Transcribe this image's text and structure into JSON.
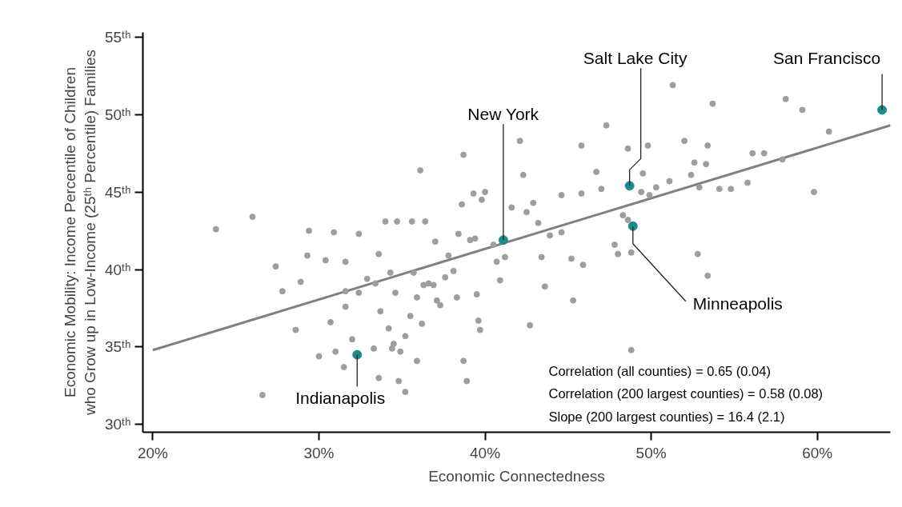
{
  "chart_data": {
    "type": "scatter",
    "xlabel": "Economic Connectedness",
    "ylabel": "Economic Mobility: Income Percentile of Children\nwho Grow up in Low-Income (25ᵗʰ Percentile) Families",
    "xlim": [
      19.4,
      64.4
    ],
    "ylim": [
      29.5,
      55.3
    ],
    "xticks": [
      {
        "value": 20,
        "label": "20%"
      },
      {
        "value": 30,
        "label": "30%"
      },
      {
        "value": 40,
        "label": "40%"
      },
      {
        "value": 50,
        "label": "50%"
      },
      {
        "value": 60,
        "label": "60%"
      }
    ],
    "yticks": [
      {
        "value": 30,
        "label": "30ᵗʰ"
      },
      {
        "value": 35,
        "label": "35ᵗʰ"
      },
      {
        "value": 40,
        "label": "40ᵗʰ"
      },
      {
        "value": 45,
        "label": "45ᵗʰ"
      },
      {
        "value": 50,
        "label": "50ᵗʰ"
      },
      {
        "value": 55,
        "label": "55ᵗʰ"
      }
    ],
    "grid": false,
    "series": [
      {
        "marker": "circle",
        "color": "#9e9e9e",
        "x": [
          23.8,
          26.0,
          26.6,
          27.4,
          27.8,
          28.6,
          28.9,
          29.3,
          29.4,
          30.0,
          30.4,
          30.7,
          30.9,
          31.0,
          31.5,
          31.6,
          31.6,
          31.6,
          32.0,
          32.4,
          32.4,
          32.9,
          33.3,
          33.6,
          33.6,
          34.0,
          34.7,
          33.7,
          33.4,
          34.2,
          34.4,
          34.5,
          34.8,
          35.2,
          35.2,
          35.5,
          35.6,
          35.9,
          36.1,
          36.4,
          35.7,
          35.9,
          36.3,
          36.6,
          37.0,
          37.1,
          37.3,
          37.6,
          37.8,
          38.1,
          38.3,
          38.4,
          38.6,
          38.7,
          38.7,
          38.9,
          39.1,
          39.3,
          39.4,
          39.5,
          39.6,
          39.7,
          39.8,
          40.0,
          40.5,
          40.7,
          40.9,
          41.2,
          41.6,
          42.1,
          42.3,
          42.5,
          42.7,
          42.9,
          43.2,
          43.4,
          43.9,
          43.6,
          44.6,
          44.6,
          45.2,
          45.3,
          45.8,
          45.8,
          45.9,
          46.7,
          47.0,
          47.3,
          47.8,
          48.0,
          48.3,
          48.6,
          48.6,
          48.8,
          48.8,
          49.4,
          49.5,
          49.8,
          49.9,
          50.3,
          51.1,
          51.3,
          52.0,
          52.4,
          52.6,
          52.9,
          53.3,
          53.4,
          52.8,
          53.4,
          53.7,
          54.1,
          54.8,
          55.8,
          56.1,
          56.8,
          57.9,
          58.1,
          59.1,
          59.8,
          60.7,
          34.3,
          34.6,
          34.9,
          36.2,
          36.9
        ],
        "values": [
          42.6,
          43.4,
          31.9,
          40.2,
          38.6,
          36.1,
          39.2,
          40.9,
          42.5,
          34.4,
          40.6,
          36.6,
          42.4,
          34.7,
          33.7,
          37.6,
          40.5,
          38.6,
          35.5,
          42.3,
          38.5,
          39.4,
          34.9,
          33.0,
          41.0,
          43.1,
          43.1,
          37.3,
          39.1,
          36.2,
          34.9,
          35.2,
          32.8,
          32.1,
          35.7,
          37.0,
          43.1,
          34.1,
          46.4,
          43.1,
          39.8,
          38.2,
          39.0,
          39.1,
          41.8,
          38.0,
          37.7,
          39.5,
          40.9,
          39.9,
          38.2,
          42.3,
          44.2,
          47.4,
          34.1,
          32.8,
          41.9,
          44.9,
          42.0,
          38.4,
          36.7,
          36.1,
          44.5,
          45.0,
          41.6,
          40.5,
          39.3,
          40.8,
          44.0,
          48.3,
          46.1,
          43.7,
          36.4,
          44.3,
          43.0,
          40.8,
          42.2,
          38.9,
          44.8,
          42.4,
          40.7,
          38.0,
          48.0,
          44.9,
          40.3,
          46.3,
          45.2,
          49.3,
          41.6,
          41.0,
          43.5,
          43.2,
          47.8,
          41.1,
          34.8,
          45.0,
          46.2,
          48.0,
          44.8,
          45.3,
          45.7,
          51.9,
          48.3,
          46.1,
          46.9,
          45.3,
          46.8,
          48.0,
          41.0,
          39.6,
          50.7,
          45.2,
          45.2,
          45.6,
          47.5,
          47.5,
          47.1,
          51.0,
          50.3,
          45.0,
          48.9,
          39.8,
          38.5,
          34.7,
          36.5,
          39.0
        ]
      },
      {
        "marker": "circle",
        "color": "#1b8c8a",
        "x": [
          32.3,
          41.1,
          48.7,
          48.9,
          63.9
        ],
        "values": [
          34.5,
          41.9,
          45.4,
          42.8,
          50.3
        ]
      },
      {
        "type": "line",
        "marker": "none",
        "color": "#808080",
        "x": [
          20.0,
          64.4
        ],
        "values": [
          34.8,
          49.3
        ]
      }
    ],
    "annotations": [
      {
        "text": "Indianapolis",
        "x": 32.3,
        "y": 34.5
      },
      {
        "text": "New York",
        "x": 41.1,
        "y": 41.9
      },
      {
        "text": "Salt Lake City",
        "x": 48.7,
        "y": 45.4
      },
      {
        "text": "Minneapolis",
        "x": 48.9,
        "y": 42.8
      },
      {
        "text": "San Francisco",
        "x": 63.9,
        "y": 50.3
      },
      "Correlation (all counties) = 0.65 (0.04)",
      "Correlation (200 largest counties) = 0.58 (0.08)",
      "Slope (200 largest counties) = 16.4 (2.1)"
    ]
  }
}
